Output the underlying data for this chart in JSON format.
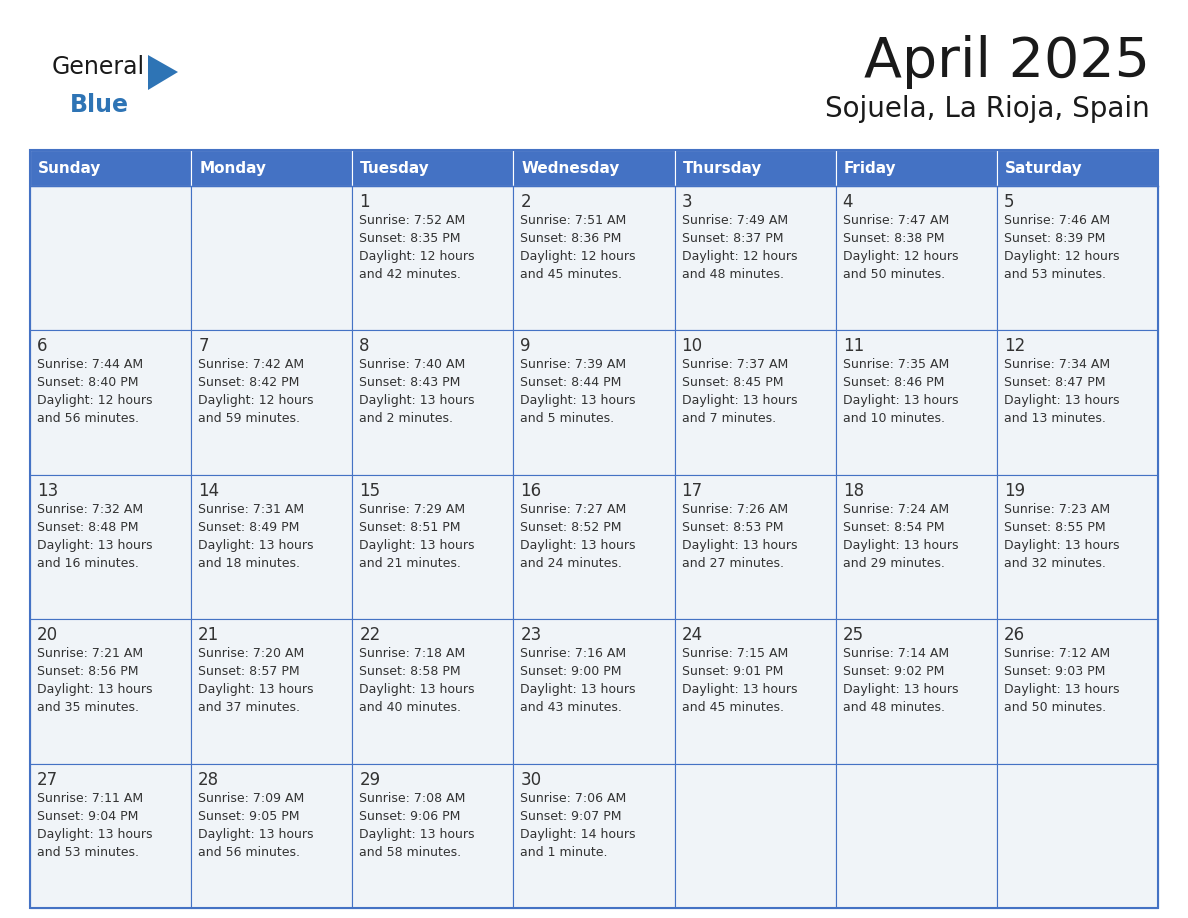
{
  "title": "April 2025",
  "subtitle": "Sojuela, La Rioja, Spain",
  "days_of_week": [
    "Sunday",
    "Monday",
    "Tuesday",
    "Wednesday",
    "Thursday",
    "Friday",
    "Saturday"
  ],
  "header_bg_color": "#4472C4",
  "header_text_color": "#FFFFFF",
  "cell_bg_color": "#F0F4F8",
  "border_color": "#4472C4",
  "text_color": "#333333",
  "title_color": "#1a1a1a",
  "logo_triangle_color": "#2E74B5",
  "logo_blue_color": "#2E74B5",
  "calendar_data": [
    [
      {
        "day": "",
        "lines": []
      },
      {
        "day": "",
        "lines": []
      },
      {
        "day": "1",
        "lines": [
          "Sunrise: 7:52 AM",
          "Sunset: 8:35 PM",
          "Daylight: 12 hours",
          "and 42 minutes."
        ]
      },
      {
        "day": "2",
        "lines": [
          "Sunrise: 7:51 AM",
          "Sunset: 8:36 PM",
          "Daylight: 12 hours",
          "and 45 minutes."
        ]
      },
      {
        "day": "3",
        "lines": [
          "Sunrise: 7:49 AM",
          "Sunset: 8:37 PM",
          "Daylight: 12 hours",
          "and 48 minutes."
        ]
      },
      {
        "day": "4",
        "lines": [
          "Sunrise: 7:47 AM",
          "Sunset: 8:38 PM",
          "Daylight: 12 hours",
          "and 50 minutes."
        ]
      },
      {
        "day": "5",
        "lines": [
          "Sunrise: 7:46 AM",
          "Sunset: 8:39 PM",
          "Daylight: 12 hours",
          "and 53 minutes."
        ]
      }
    ],
    [
      {
        "day": "6",
        "lines": [
          "Sunrise: 7:44 AM",
          "Sunset: 8:40 PM",
          "Daylight: 12 hours",
          "and 56 minutes."
        ]
      },
      {
        "day": "7",
        "lines": [
          "Sunrise: 7:42 AM",
          "Sunset: 8:42 PM",
          "Daylight: 12 hours",
          "and 59 minutes."
        ]
      },
      {
        "day": "8",
        "lines": [
          "Sunrise: 7:40 AM",
          "Sunset: 8:43 PM",
          "Daylight: 13 hours",
          "and 2 minutes."
        ]
      },
      {
        "day": "9",
        "lines": [
          "Sunrise: 7:39 AM",
          "Sunset: 8:44 PM",
          "Daylight: 13 hours",
          "and 5 minutes."
        ]
      },
      {
        "day": "10",
        "lines": [
          "Sunrise: 7:37 AM",
          "Sunset: 8:45 PM",
          "Daylight: 13 hours",
          "and 7 minutes."
        ]
      },
      {
        "day": "11",
        "lines": [
          "Sunrise: 7:35 AM",
          "Sunset: 8:46 PM",
          "Daylight: 13 hours",
          "and 10 minutes."
        ]
      },
      {
        "day": "12",
        "lines": [
          "Sunrise: 7:34 AM",
          "Sunset: 8:47 PM",
          "Daylight: 13 hours",
          "and 13 minutes."
        ]
      }
    ],
    [
      {
        "day": "13",
        "lines": [
          "Sunrise: 7:32 AM",
          "Sunset: 8:48 PM",
          "Daylight: 13 hours",
          "and 16 minutes."
        ]
      },
      {
        "day": "14",
        "lines": [
          "Sunrise: 7:31 AM",
          "Sunset: 8:49 PM",
          "Daylight: 13 hours",
          "and 18 minutes."
        ]
      },
      {
        "day": "15",
        "lines": [
          "Sunrise: 7:29 AM",
          "Sunset: 8:51 PM",
          "Daylight: 13 hours",
          "and 21 minutes."
        ]
      },
      {
        "day": "16",
        "lines": [
          "Sunrise: 7:27 AM",
          "Sunset: 8:52 PM",
          "Daylight: 13 hours",
          "and 24 minutes."
        ]
      },
      {
        "day": "17",
        "lines": [
          "Sunrise: 7:26 AM",
          "Sunset: 8:53 PM",
          "Daylight: 13 hours",
          "and 27 minutes."
        ]
      },
      {
        "day": "18",
        "lines": [
          "Sunrise: 7:24 AM",
          "Sunset: 8:54 PM",
          "Daylight: 13 hours",
          "and 29 minutes."
        ]
      },
      {
        "day": "19",
        "lines": [
          "Sunrise: 7:23 AM",
          "Sunset: 8:55 PM",
          "Daylight: 13 hours",
          "and 32 minutes."
        ]
      }
    ],
    [
      {
        "day": "20",
        "lines": [
          "Sunrise: 7:21 AM",
          "Sunset: 8:56 PM",
          "Daylight: 13 hours",
          "and 35 minutes."
        ]
      },
      {
        "day": "21",
        "lines": [
          "Sunrise: 7:20 AM",
          "Sunset: 8:57 PM",
          "Daylight: 13 hours",
          "and 37 minutes."
        ]
      },
      {
        "day": "22",
        "lines": [
          "Sunrise: 7:18 AM",
          "Sunset: 8:58 PM",
          "Daylight: 13 hours",
          "and 40 minutes."
        ]
      },
      {
        "day": "23",
        "lines": [
          "Sunrise: 7:16 AM",
          "Sunset: 9:00 PM",
          "Daylight: 13 hours",
          "and 43 minutes."
        ]
      },
      {
        "day": "24",
        "lines": [
          "Sunrise: 7:15 AM",
          "Sunset: 9:01 PM",
          "Daylight: 13 hours",
          "and 45 minutes."
        ]
      },
      {
        "day": "25",
        "lines": [
          "Sunrise: 7:14 AM",
          "Sunset: 9:02 PM",
          "Daylight: 13 hours",
          "and 48 minutes."
        ]
      },
      {
        "day": "26",
        "lines": [
          "Sunrise: 7:12 AM",
          "Sunset: 9:03 PM",
          "Daylight: 13 hours",
          "and 50 minutes."
        ]
      }
    ],
    [
      {
        "day": "27",
        "lines": [
          "Sunrise: 7:11 AM",
          "Sunset: 9:04 PM",
          "Daylight: 13 hours",
          "and 53 minutes."
        ]
      },
      {
        "day": "28",
        "lines": [
          "Sunrise: 7:09 AM",
          "Sunset: 9:05 PM",
          "Daylight: 13 hours",
          "and 56 minutes."
        ]
      },
      {
        "day": "29",
        "lines": [
          "Sunrise: 7:08 AM",
          "Sunset: 9:06 PM",
          "Daylight: 13 hours",
          "and 58 minutes."
        ]
      },
      {
        "day": "30",
        "lines": [
          "Sunrise: 7:06 AM",
          "Sunset: 9:07 PM",
          "Daylight: 14 hours",
          "and 1 minute."
        ]
      },
      {
        "day": "",
        "lines": []
      },
      {
        "day": "",
        "lines": []
      },
      {
        "day": "",
        "lines": []
      }
    ]
  ]
}
